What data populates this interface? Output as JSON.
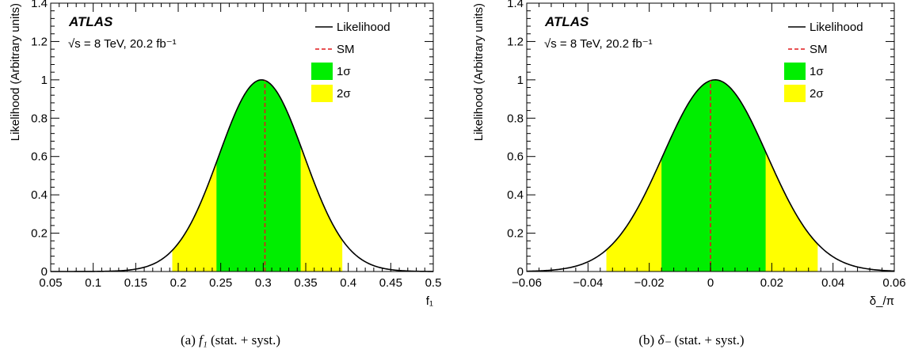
{
  "chart_data": [
    {
      "type": "line",
      "experiment": "ATLAS",
      "energy_lumi": "√s = 8 TeV, 20.2 fb⁻¹",
      "xlabel": "f₁",
      "ylabel": "Likelihood (Arbitrary units)",
      "xlim": [
        0.05,
        0.5
      ],
      "ylim": [
        0,
        1.4
      ],
      "xticks": [
        "0.05",
        "0.1",
        "0.15",
        "0.2",
        "0.25",
        "0.3",
        "0.35",
        "0.4",
        "0.45",
        "0.5"
      ],
      "yticks": [
        "0",
        "0.2",
        "0.4",
        "0.6",
        "0.8",
        "1",
        "1.2",
        "1.4"
      ],
      "curve": {
        "mean": 0.298,
        "sigma": 0.05
      },
      "sm_value": 0.302,
      "band_1sigma": [
        0.245,
        0.344
      ],
      "band_2sigma": [
        0.193,
        0.393
      ],
      "legend": [
        {
          "label": "Likelihood",
          "style": "line",
          "color": "#000000"
        },
        {
          "label": "SM",
          "style": "dashed",
          "color": "#e0191c"
        },
        {
          "label": "1σ",
          "style": "box",
          "color": "#00ee00"
        },
        {
          "label": "2σ",
          "style": "box",
          "color": "#ffff00"
        }
      ],
      "legend_position": "top-right",
      "caption_prefix": "(a)",
      "caption_symbol": "f₁",
      "caption_suffix": "(stat. + syst.)"
    },
    {
      "type": "line",
      "experiment": "ATLAS",
      "energy_lumi": "√s = 8 TeV, 20.2 fb⁻¹",
      "xlabel": "δ_/π",
      "ylabel": "Likelihood (Arbitrary units)",
      "xlim": [
        -0.06,
        0.06
      ],
      "ylim": [
        0,
        1.4
      ],
      "xticks": [
        "−0.06",
        "−0.04",
        "−0.02",
        "0",
        "0.02",
        "0.04",
        "0.06"
      ],
      "yticks": [
        "0",
        "0.2",
        "0.4",
        "0.6",
        "0.8",
        "1",
        "1.2",
        "1.4"
      ],
      "curve": {
        "mean": 0.0015,
        "sigma": 0.017
      },
      "sm_value": 0.0,
      "band_1sigma": [
        -0.016,
        0.018
      ],
      "band_2sigma": [
        -0.034,
        0.035
      ],
      "legend": [
        {
          "label": "Likelihood",
          "style": "line",
          "color": "#000000"
        },
        {
          "label": "SM",
          "style": "dashed",
          "color": "#e0191c"
        },
        {
          "label": "1σ",
          "style": "box",
          "color": "#00ee00"
        },
        {
          "label": "2σ",
          "style": "box",
          "color": "#ffff00"
        }
      ],
      "legend_position": "top-right",
      "caption_prefix": "(b)",
      "caption_symbol": "δ₋",
      "caption_suffix": "(stat. + syst.)"
    }
  ]
}
